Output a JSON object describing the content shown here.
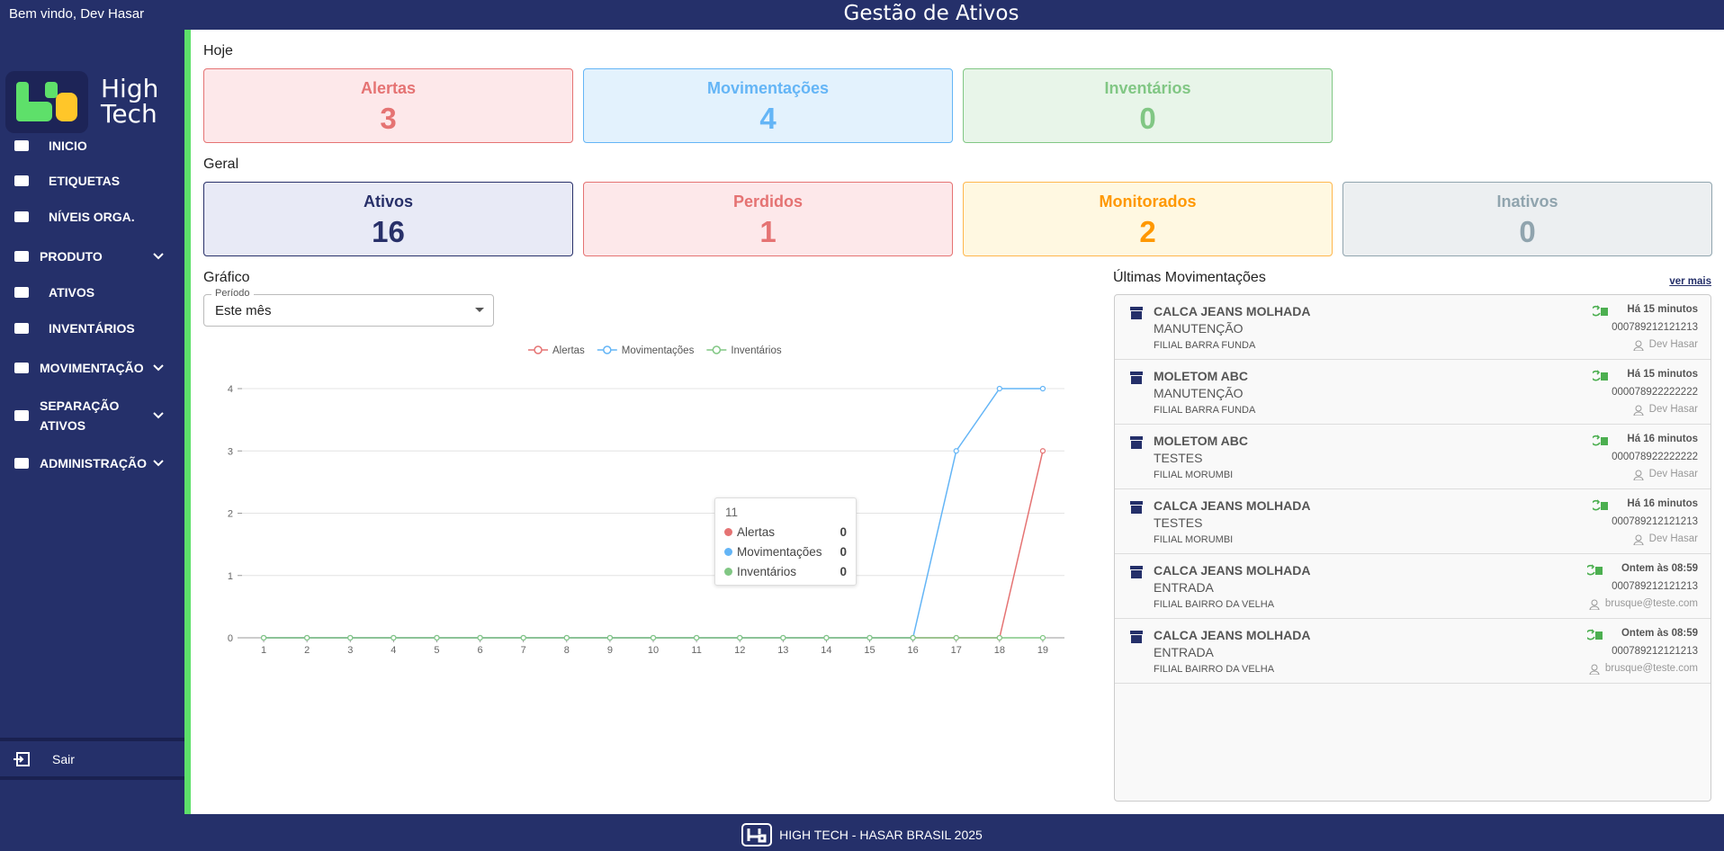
{
  "header": {
    "welcome": "Bem vindo, Dev Hasar",
    "title": "Gestão de Ativos"
  },
  "sidebar": {
    "logo": {
      "line1": "High",
      "line2": "Tech"
    },
    "menu": [
      {
        "label": "INICIO"
      },
      {
        "label": "ETIQUETAS"
      },
      {
        "label": "NÍVEIS ORGA."
      },
      {
        "label": "PRODUTO",
        "expandable": true
      },
      {
        "label": "ATIVOS"
      },
      {
        "label": "INVENTÁRIOS"
      },
      {
        "label": "MOVIMENTAÇÃO",
        "expandable": true
      },
      {
        "label": "SEPARAÇÃO ATIVOS",
        "expandable": true
      },
      {
        "label": "ADMINISTRAÇÃO",
        "expandable": true
      }
    ],
    "logout": "Sair"
  },
  "today": {
    "label": "Hoje",
    "cards": [
      {
        "label": "Alertas",
        "value": 3,
        "color": "#e57373",
        "background": "#fde8ea",
        "border": "#e57373"
      },
      {
        "label": "Movimentações",
        "value": 4,
        "color": "#64b5f6",
        "background": "#e3f2fd",
        "border": "#64b5f6"
      },
      {
        "label": "Inventários",
        "value": 0,
        "color": "#81c784",
        "background": "#e8f5e9",
        "border": "#81c784"
      }
    ]
  },
  "general": {
    "label": "Geral",
    "cards": [
      {
        "label": "Ativos",
        "value": 16,
        "color": "#283069",
        "background": "#e8eaf6",
        "border": "#283069"
      },
      {
        "label": "Perdidos",
        "value": 1,
        "color": "#e57373",
        "background": "#fde8ea",
        "border": "#e57373"
      },
      {
        "label": "Monitorados",
        "value": 2,
        "color": "#ff9800",
        "background": "#fff8e1",
        "border": "#ffb74d"
      },
      {
        "label": "Inativos",
        "value": 0,
        "color": "#90a4ae",
        "background": "#eceff1",
        "border": "#90a4ae"
      }
    ]
  },
  "chart_data": {
    "type": "line",
    "title": "Gráfico",
    "period_label": "Período",
    "period": "Este mês",
    "categories": [
      "1",
      "2",
      "3",
      "4",
      "5",
      "6",
      "7",
      "8",
      "9",
      "10",
      "11",
      "12",
      "13",
      "14",
      "15",
      "16",
      "17",
      "18",
      "19"
    ],
    "series": [
      {
        "name": "Alertas",
        "color": "#e57373",
        "values": [
          0,
          0,
          0,
          0,
          0,
          0,
          0,
          0,
          0,
          0,
          0,
          0,
          0,
          0,
          0,
          0,
          0,
          0,
          3
        ]
      },
      {
        "name": "Movimentações",
        "color": "#64b5f6",
        "values": [
          0,
          0,
          0,
          0,
          0,
          0,
          0,
          0,
          0,
          0,
          0,
          0,
          0,
          0,
          0,
          0,
          3,
          4,
          4
        ]
      },
      {
        "name": "Inventários",
        "color": "#81c784",
        "values": [
          0,
          0,
          0,
          0,
          0,
          0,
          0,
          0,
          0,
          0,
          0,
          0,
          0,
          0,
          0,
          0,
          0,
          0,
          0
        ]
      }
    ],
    "ylim": [
      0,
      4
    ],
    "yticks": [
      0,
      1,
      2,
      3,
      4
    ],
    "grid": true,
    "legend": "top",
    "tooltip": {
      "category": "11"
    }
  },
  "movements": {
    "title": "Últimas Movimentações",
    "more": "ver mais",
    "items": [
      {
        "product": "CALCA JEANS MOLHADA",
        "type": "MANUTENÇÃO",
        "location": "FILIAL BARRA FUNDA",
        "time": "Há 15 minutos",
        "code": "000789212121213",
        "user": "Dev Hasar"
      },
      {
        "product": "MOLETOM ABC",
        "type": "MANUTENÇÃO",
        "location": "FILIAL BARRA FUNDA",
        "time": "Há 15 minutos",
        "code": "000078922222222",
        "user": "Dev Hasar"
      },
      {
        "product": "MOLETOM ABC",
        "type": "TESTES",
        "location": "FILIAL MORUMBI",
        "time": "Há 16 minutos",
        "code": "000078922222222",
        "user": "Dev Hasar"
      },
      {
        "product": "CALCA JEANS MOLHADA",
        "type": "TESTES",
        "location": "FILIAL MORUMBI",
        "time": "Há 16 minutos",
        "code": "000789212121213",
        "user": "Dev Hasar"
      },
      {
        "product": "CALCA JEANS MOLHADA",
        "type": "ENTRADA",
        "location": "FILIAL BAIRRO DA VELHA",
        "time": "Ontem às 08:59",
        "code": "000789212121213",
        "user": "brusque@teste.com"
      },
      {
        "product": "CALCA JEANS MOLHADA",
        "type": "ENTRADA",
        "location": "FILIAL BAIRRO DA VELHA",
        "time": "Ontem às 08:59",
        "code": "000789212121213",
        "user": "brusque@teste.com"
      }
    ]
  },
  "footer": "HIGH TECH - HASAR BRASIL 2025"
}
